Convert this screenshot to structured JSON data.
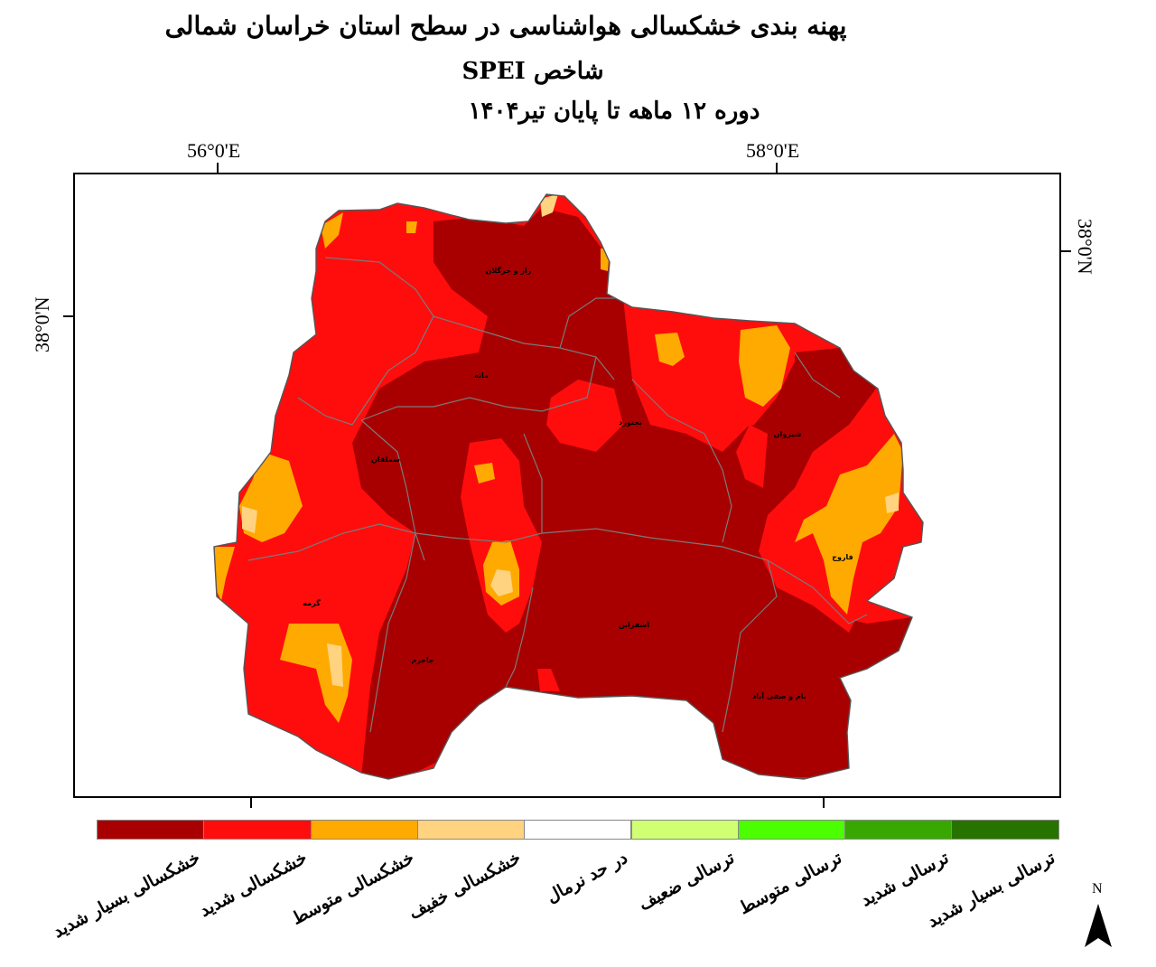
{
  "title": {
    "line1": "پهنه بندی خشکسالی هواشناسی در سطح استان خراسان شمالی",
    "line2": "شاخص SPEI",
    "line3": "دوره ۱۲ ماهه تا پایان تیر۱۴۰۴"
  },
  "grid_labels": {
    "lon_left_top": "56°0'E",
    "lon_right_top": "58°0'E",
    "lat_left": "38°0'N",
    "lat_right": "38°0'N"
  },
  "cities": [
    {
      "name": "راز و جرگلان"
    },
    {
      "name": "مانه"
    },
    {
      "name": "بجنورد"
    },
    {
      "name": "شیروان"
    },
    {
      "name": "سملقان"
    },
    {
      "name": "فاروج"
    },
    {
      "name": "گرمه"
    },
    {
      "name": "جاجرم"
    },
    {
      "name": "اسفراین"
    },
    {
      "name": "بام و صفی آباد"
    }
  ],
  "legend": [
    {
      "label": "خشکسالی بسیار شدید",
      "color": "#a80000"
    },
    {
      "label": "خشکسالی شدید",
      "color": "#ff0d0d"
    },
    {
      "label": "خشکسالی متوسط",
      "color": "#ffaa00"
    },
    {
      "label": "خشکسالی خفیف",
      "color": "#ffd37f"
    },
    {
      "label": "در حد نرمال",
      "color": "#ffffff"
    },
    {
      "label": "ترسالی ضعیف",
      "color": "#d1ff73"
    },
    {
      "label": "ترسالی متوسط",
      "color": "#4cff00"
    },
    {
      "label": "ترسالی شدید",
      "color": "#38a800"
    },
    {
      "label": "ترسالی بسیار شدید",
      "color": "#267300"
    }
  ],
  "north_arrow": {
    "label": "N",
    "icon": "north-arrow-icon"
  }
}
